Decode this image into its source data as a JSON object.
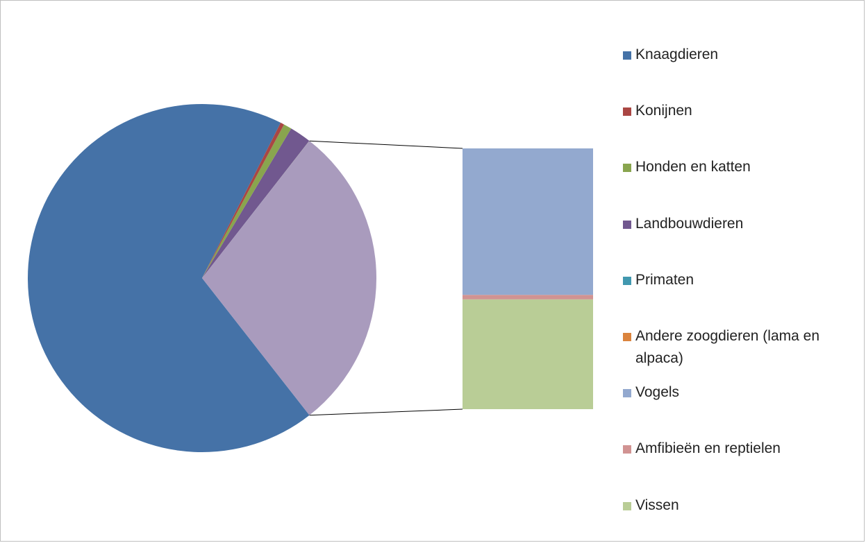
{
  "chart_data": {
    "type": "pie",
    "subtype": "bar-of-pie",
    "title": "",
    "legend_position": "right",
    "series": [
      {
        "name": "Knaagdieren",
        "value": 68.0,
        "color": "#4572a7",
        "group": "pie"
      },
      {
        "name": "Konijnen",
        "value": 0.35,
        "color": "#aa4643",
        "group": "pie"
      },
      {
        "name": "Honden en katten",
        "value": 0.75,
        "color": "#89a54e",
        "group": "pie"
      },
      {
        "name": "Landbouwdieren",
        "value": 2.0,
        "color": "#71588f",
        "group": "pie"
      },
      {
        "name": "Primaten",
        "value": 0.01,
        "color": "#4198af",
        "group": "pie"
      },
      {
        "name": "Andere zoogdieren (lama en alpaca)",
        "value": 0.01,
        "color": "#db843d",
        "group": "pie"
      },
      {
        "name": "Vogels",
        "value": 16.23,
        "color": "#93a9cf",
        "group": "bar"
      },
      {
        "name": "Amfibieën en reptielen",
        "value": 0.5,
        "color": "#d19392",
        "group": "bar"
      },
      {
        "name": "Vissen",
        "value": 12.15,
        "color": "#b9cd96",
        "group": "bar"
      }
    ],
    "other_slice_color": "#a99bbd"
  }
}
